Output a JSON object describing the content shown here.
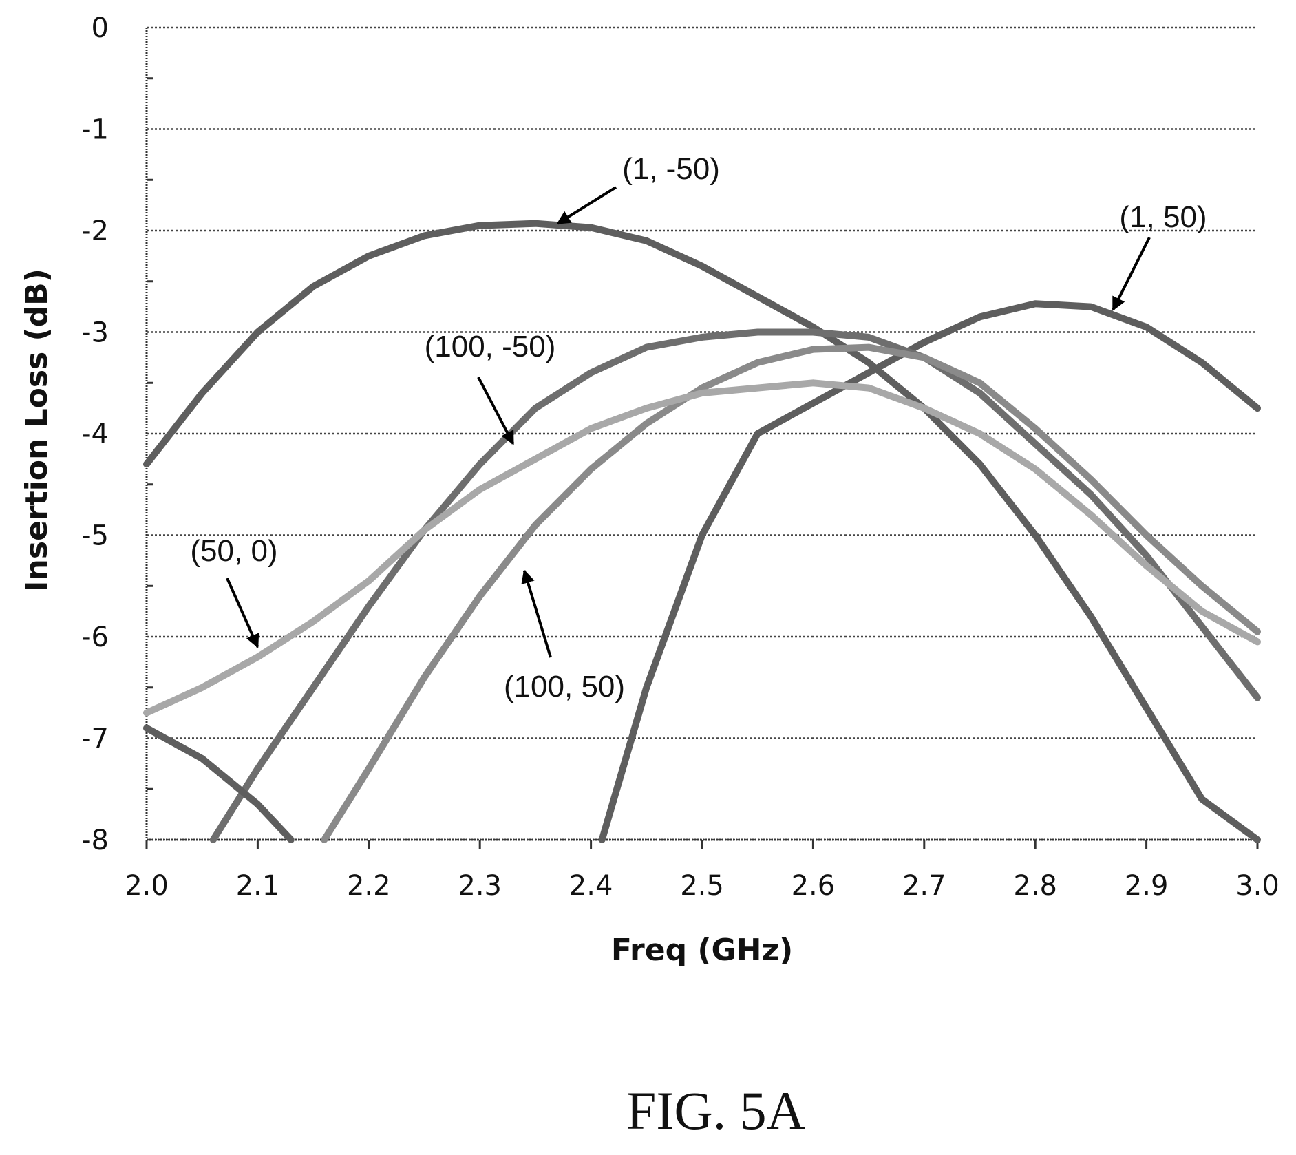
{
  "figure_caption": "FIG. 5A",
  "chart_data": {
    "type": "line",
    "xlabel": "Freq (GHz)",
    "ylabel": "Insertion Loss (dB)",
    "xlim": [
      2.0,
      3.0
    ],
    "ylim": [
      -8,
      0
    ],
    "x_ticks": [
      "2.0",
      "2.1",
      "2.2",
      "2.3",
      "2.4",
      "2.5",
      "2.6",
      "2.7",
      "2.8",
      "2.9",
      "3.0"
    ],
    "y_ticks": [
      "0",
      "-1",
      "-2",
      "-3",
      "-4",
      "-5",
      "-6",
      "-7",
      "-8"
    ],
    "grid": "horizontal dotted",
    "series": [
      {
        "name": "(1, -50)",
        "color": "#5e5e5e",
        "x": [
          2.0,
          2.05,
          2.1,
          2.15,
          2.2,
          2.25,
          2.3,
          2.35,
          2.4,
          2.45,
          2.5,
          2.55,
          2.6,
          2.65,
          2.7,
          2.75,
          2.8,
          2.85,
          2.9,
          2.95,
          3.0
        ],
        "y": [
          -4.3,
          -3.6,
          -3.0,
          -2.55,
          -2.25,
          -2.05,
          -1.95,
          -1.93,
          -1.97,
          -2.1,
          -2.35,
          -2.65,
          -2.95,
          -3.3,
          -3.75,
          -4.3,
          -5.0,
          -5.8,
          -6.7,
          -7.6,
          -8.0
        ]
      },
      {
        "name": "(1, 50)",
        "color": "#5e5e5e",
        "x": [
          2.41,
          2.45,
          2.5,
          2.55,
          2.6,
          2.65,
          2.7,
          2.75,
          2.8,
          2.85,
          2.9,
          2.95,
          3.0
        ],
        "y": [
          -8.0,
          -6.5,
          -5.0,
          -4.0,
          -3.7,
          -3.4,
          -3.1,
          -2.85,
          -2.72,
          -2.75,
          -2.95,
          -3.3,
          -3.75
        ]
      },
      {
        "name": "(100, -50)",
        "color": "#6e6e6e",
        "x": [
          2.06,
          2.1,
          2.15,
          2.2,
          2.25,
          2.3,
          2.35,
          2.4,
          2.45,
          2.5,
          2.55,
          2.6,
          2.65,
          2.7,
          2.75,
          2.8,
          2.85,
          2.9,
          2.95,
          3.0
        ],
        "y": [
          -8.0,
          -7.3,
          -6.5,
          -5.7,
          -4.95,
          -4.3,
          -3.75,
          -3.4,
          -3.15,
          -3.05,
          -3.0,
          -3.0,
          -3.05,
          -3.25,
          -3.6,
          -4.1,
          -4.6,
          -5.2,
          -5.9,
          -6.6
        ]
      },
      {
        "name": "(100, 50)",
        "color": "#8a8a8a",
        "x": [
          2.16,
          2.2,
          2.25,
          2.3,
          2.35,
          2.4,
          2.45,
          2.5,
          2.55,
          2.6,
          2.65,
          2.7,
          2.75,
          2.8,
          2.85,
          2.9,
          2.95,
          3.0
        ],
        "y": [
          -8.0,
          -7.3,
          -6.4,
          -5.6,
          -4.9,
          -4.35,
          -3.9,
          -3.55,
          -3.3,
          -3.17,
          -3.15,
          -3.25,
          -3.5,
          -3.95,
          -4.45,
          -5.0,
          -5.5,
          -5.95
        ]
      },
      {
        "name": "(50, 0)",
        "color": "#a8a8a8",
        "x": [
          2.0,
          2.05,
          2.1,
          2.15,
          2.2,
          2.25,
          2.3,
          2.35,
          2.4,
          2.45,
          2.5,
          2.55,
          2.6,
          2.65,
          2.7,
          2.75,
          2.8,
          2.85,
          2.9,
          2.95,
          3.0
        ],
        "y": [
          -6.75,
          -6.5,
          -6.2,
          -5.85,
          -5.45,
          -4.95,
          -4.55,
          -4.25,
          -3.95,
          -3.75,
          -3.6,
          -3.55,
          -3.5,
          -3.55,
          -3.75,
          -4.0,
          -4.35,
          -4.8,
          -5.3,
          -5.75,
          -6.05
        ]
      },
      {
        "name": "",
        "color": "#5e5e5e",
        "x": [
          2.0,
          2.05,
          2.1,
          2.13
        ],
        "y": [
          -6.9,
          -7.2,
          -7.65,
          -8.0
        ]
      }
    ],
    "annotations": [
      {
        "text": "(1, -50)",
        "series": "(1, -50)",
        "arrow_to": [
          2.37,
          -1.93
        ]
      },
      {
        "text": "(1, 50)",
        "series": "(1, 50)",
        "arrow_to": [
          2.87,
          -2.78
        ]
      },
      {
        "text": "(100, -50)",
        "series": "(100, -50)",
        "arrow_to": [
          2.33,
          -4.1
        ]
      },
      {
        "text": "(50, 0)",
        "series": "(50, 0)",
        "arrow_to": [
          2.1,
          -6.1
        ]
      },
      {
        "text": "(100, 50)",
        "series": "(100, 50)",
        "arrow_to": [
          2.34,
          -5.35
        ]
      }
    ]
  }
}
